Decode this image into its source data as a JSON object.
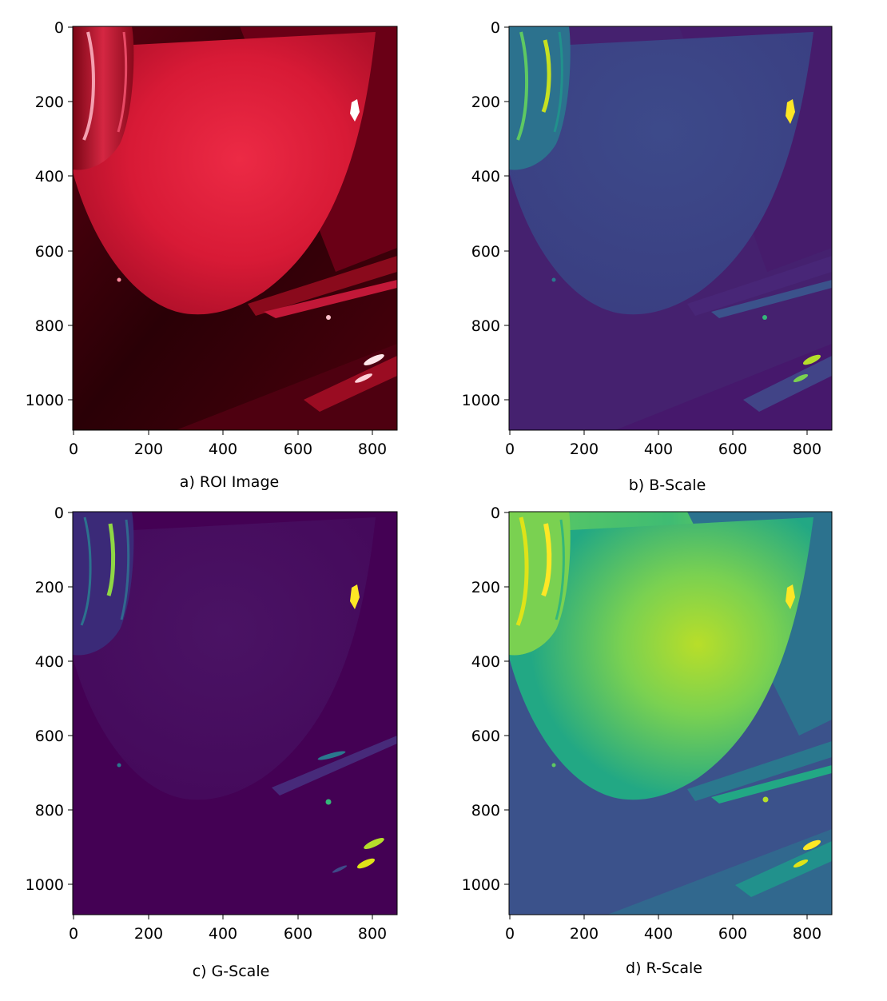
{
  "panels": [
    {
      "id": "a",
      "caption": "a) ROI Image",
      "colormap": "rgb-red",
      "x_ticks": [
        "0",
        "200",
        "400",
        "600",
        "800"
      ],
      "y_ticks": [
        "0",
        "200",
        "400",
        "600",
        "800",
        "1000"
      ]
    },
    {
      "id": "b",
      "caption": "b) B-Scale",
      "colormap": "viridis-dim",
      "x_ticks": [
        "0",
        "200",
        "400",
        "600",
        "800"
      ],
      "y_ticks": [
        "0",
        "200",
        "400",
        "600",
        "800",
        "1000"
      ]
    },
    {
      "id": "c",
      "caption": "c) G-Scale",
      "colormap": "viridis-dark",
      "x_ticks": [
        "0",
        "200",
        "400",
        "600",
        "800"
      ],
      "y_ticks": [
        "0",
        "200",
        "400",
        "600",
        "800",
        "1000"
      ]
    },
    {
      "id": "d",
      "caption": "d) R-Scale",
      "colormap": "viridis-bright",
      "x_ticks": [
        "0",
        "200",
        "400",
        "600",
        "800"
      ],
      "y_ticks": [
        "0",
        "200",
        "400",
        "600",
        "800",
        "1000"
      ]
    }
  ],
  "axis_range": {
    "x": [
      0,
      866
    ],
    "y": [
      0,
      1080
    ]
  },
  "colors": {
    "red_dark": "#3a0008",
    "red_mid": "#b0102a",
    "red_bright": "#e8223e",
    "viridis_dark": "#440154",
    "viridis_purple": "#472d7b",
    "viridis_blue": "#3b528b",
    "viridis_teal": "#21918c",
    "viridis_green": "#5ec962",
    "viridis_yellow": "#fde725"
  }
}
